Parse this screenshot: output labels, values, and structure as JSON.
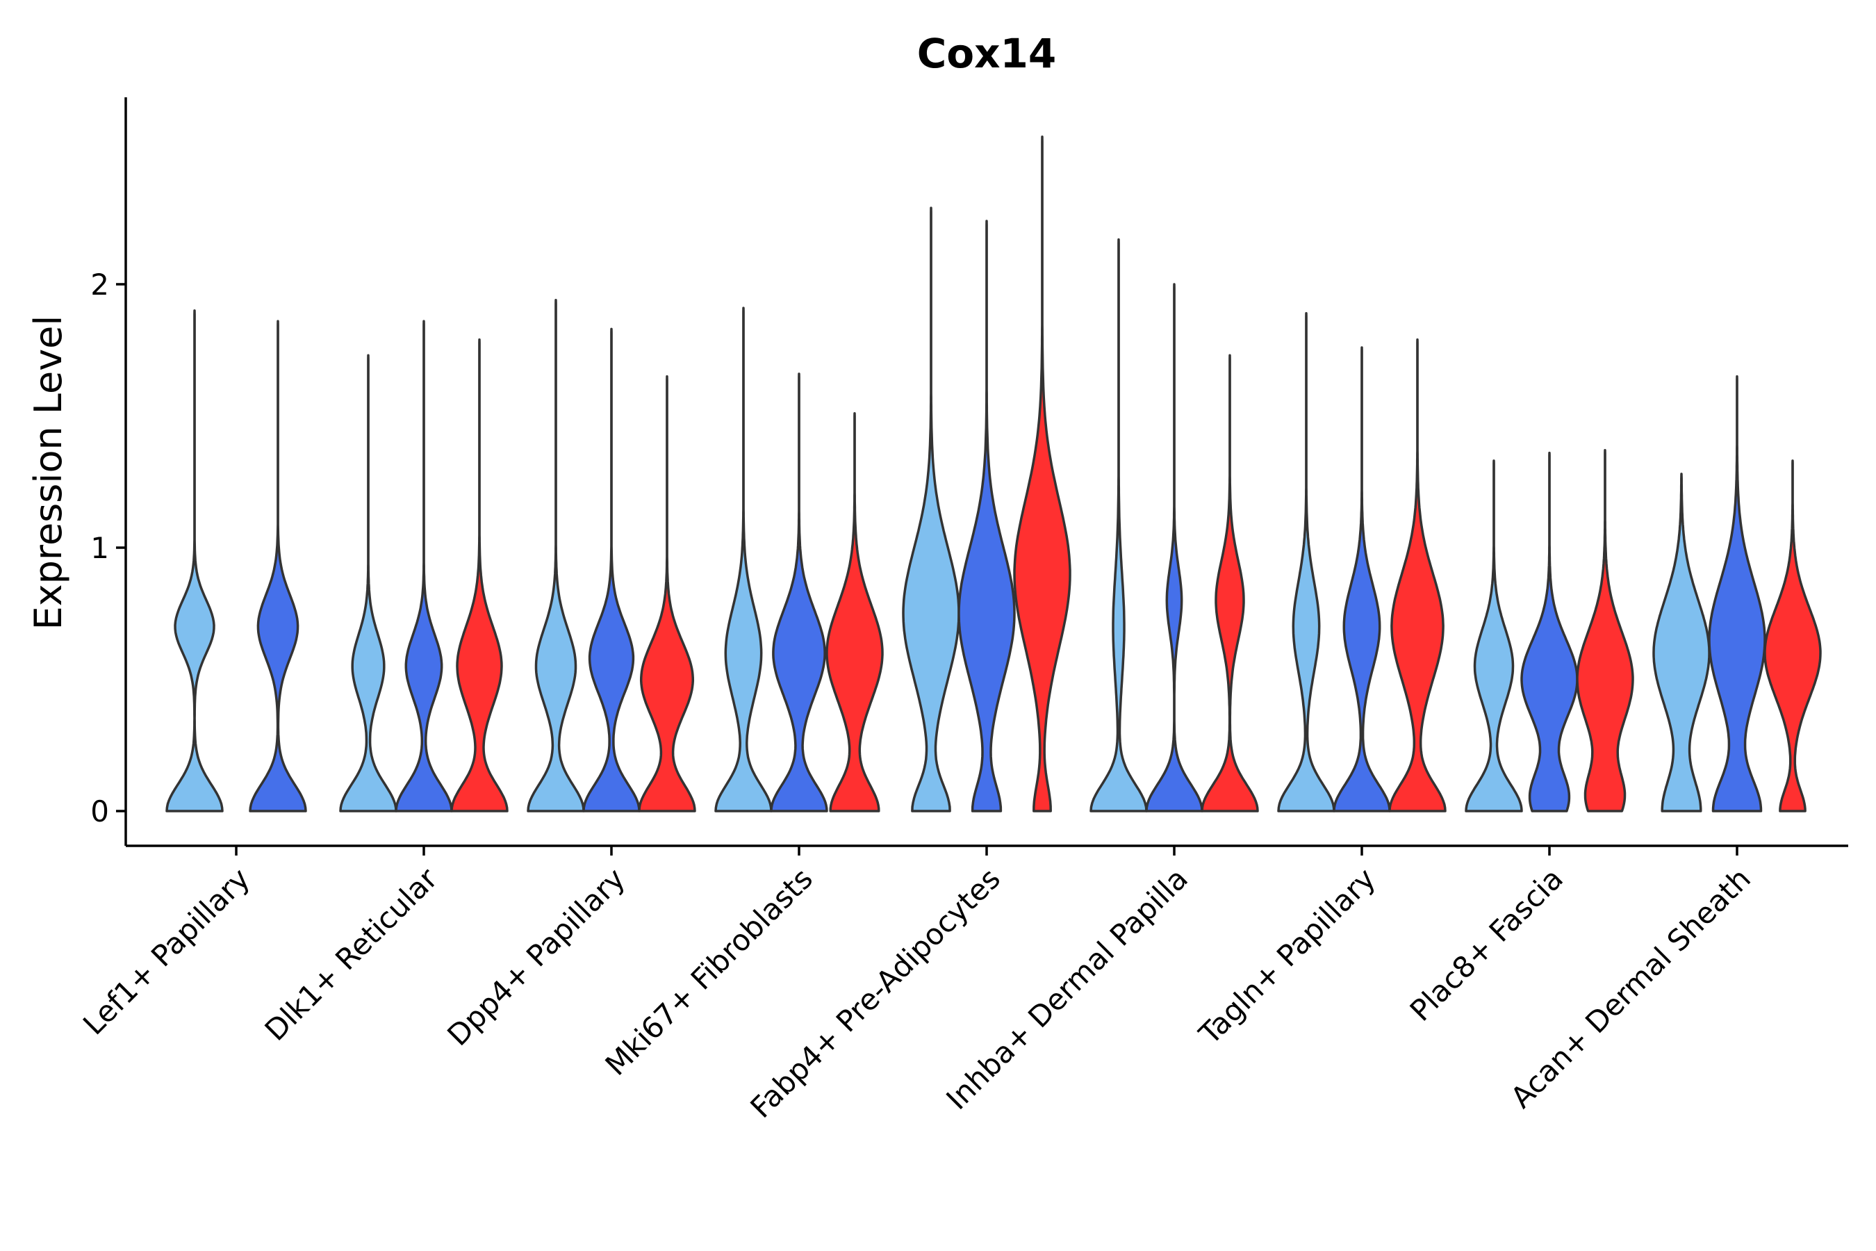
{
  "chart_data": {
    "type": "violin",
    "title": "Cox14",
    "xlabel": "",
    "ylabel": "Expression Level",
    "ylim": [
      -0.13,
      2.7
    ],
    "yticks": [
      0,
      1,
      2
    ],
    "ytick_labels": [
      "0",
      "1",
      "2"
    ],
    "colors": {
      "group1": "#7FBFEF",
      "group2": "#4570EA",
      "group3": "#FF3030",
      "outline": "#333333"
    },
    "categories": [
      {
        "label": "Lef1+ Papillary",
        "violins": [
          {
            "group": "group1",
            "max": 1.9,
            "modes": [
              [
                0.0,
                0.5,
                0.1
              ],
              [
                0.7,
                0.35,
                0.1
              ]
            ]
          },
          {
            "group": "group2",
            "max": 1.86,
            "modes": [
              [
                0.0,
                0.7,
                0.1
              ],
              [
                0.7,
                0.5,
                0.12
              ]
            ]
          }
        ]
      },
      {
        "label": "Dlk1+ Reticular",
        "violins": [
          {
            "group": "group1",
            "max": 1.73,
            "modes": [
              [
                0.0,
                0.7,
                0.1
              ],
              [
                0.55,
                0.4,
                0.12
              ]
            ]
          },
          {
            "group": "group2",
            "max": 1.86,
            "modes": [
              [
                0.0,
                0.7,
                0.1
              ],
              [
                0.55,
                0.45,
                0.12
              ]
            ]
          },
          {
            "group": "group3",
            "max": 1.79,
            "modes": [
              [
                0.0,
                0.75,
                0.1
              ],
              [
                0.55,
                0.6,
                0.15
              ]
            ]
          }
        ]
      },
      {
        "label": "Dpp4+ Papillary",
        "violins": [
          {
            "group": "group1",
            "max": 1.94,
            "modes": [
              [
                0.0,
                0.7,
                0.1
              ],
              [
                0.55,
                0.5,
                0.14
              ]
            ]
          },
          {
            "group": "group2",
            "max": 1.83,
            "modes": [
              [
                0.0,
                0.7,
                0.1
              ],
              [
                0.58,
                0.55,
                0.13
              ]
            ]
          },
          {
            "group": "group3",
            "max": 1.65,
            "modes": [
              [
                0.0,
                0.75,
                0.1
              ],
              [
                0.5,
                0.7,
                0.14
              ]
            ]
          }
        ]
      },
      {
        "label": "Mki67+ Fibroblasts",
        "violins": [
          {
            "group": "group1",
            "max": 1.91,
            "modes": [
              [
                0.0,
                0.7,
                0.1
              ],
              [
                0.6,
                0.45,
                0.17
              ]
            ]
          },
          {
            "group": "group2",
            "max": 1.66,
            "modes": [
              [
                0.0,
                0.7,
                0.1
              ],
              [
                0.6,
                0.65,
                0.16
              ]
            ]
          },
          {
            "group": "group3",
            "max": 1.51,
            "modes": [
              [
                0.0,
                0.65,
                0.1
              ],
              [
                0.6,
                0.75,
                0.18
              ]
            ]
          }
        ]
      },
      {
        "label": "Fabp4+ Pre-Adipocytes",
        "violins": [
          {
            "group": "group1",
            "max": 2.29,
            "modes": [
              [
                0.0,
                0.5,
                0.1
              ],
              [
                0.75,
                0.75,
                0.25
              ]
            ]
          },
          {
            "group": "group2",
            "max": 2.24,
            "modes": [
              [
                0.0,
                0.4,
                0.1
              ],
              [
                0.75,
                0.8,
                0.25
              ]
            ]
          },
          {
            "group": "group3",
            "max": 2.56,
            "modes": [
              [
                0.0,
                0.3,
                0.1
              ],
              [
                0.9,
                1.0,
                0.28
              ]
            ]
          }
        ]
      },
      {
        "label": "Inhba+ Dermal Papilla",
        "violins": [
          {
            "group": "group1",
            "max": 2.17,
            "modes": [
              [
                0.0,
                0.75,
                0.1
              ],
              [
                0.7,
                0.15,
                0.2
              ]
            ]
          },
          {
            "group": "group2",
            "max": 2.0,
            "modes": [
              [
                0.0,
                0.75,
                0.1
              ],
              [
                0.8,
                0.2,
                0.12
              ]
            ]
          },
          {
            "group": "group3",
            "max": 1.73,
            "modes": [
              [
                0.0,
                0.7,
                0.1
              ],
              [
                0.8,
                0.35,
                0.15
              ]
            ]
          }
        ]
      },
      {
        "label": "Tagln+ Papillary",
        "violins": [
          {
            "group": "group1",
            "max": 1.89,
            "modes": [
              [
                0.0,
                0.75,
                0.1
              ],
              [
                0.7,
                0.35,
                0.17
              ]
            ]
          },
          {
            "group": "group2",
            "max": 1.76,
            "modes": [
              [
                0.0,
                0.7,
                0.1
              ],
              [
                0.7,
                0.45,
                0.16
              ]
            ]
          },
          {
            "group": "group3",
            "max": 1.79,
            "modes": [
              [
                0.0,
                0.7,
                0.1
              ],
              [
                0.7,
                0.65,
                0.2
              ]
            ]
          }
        ]
      },
      {
        "label": "Plac8+ Fascia",
        "violins": [
          {
            "group": "group1",
            "max": 1.33,
            "modes": [
              [
                0.0,
                0.8,
                0.1
              ],
              [
                0.55,
                0.55,
                0.14
              ]
            ]
          },
          {
            "group": "group2",
            "max": 1.36,
            "modes": [
              [
                0.05,
                0.7,
                0.1
              ],
              [
                0.5,
                1.0,
                0.15
              ]
            ]
          },
          {
            "group": "group3",
            "max": 1.37,
            "modes": [
              [
                0.05,
                0.6,
                0.1
              ],
              [
                0.5,
                0.9,
                0.18
              ]
            ]
          }
        ]
      },
      {
        "label": "Acan+ Dermal Sheath",
        "violins": [
          {
            "group": "group1",
            "max": 1.28,
            "modes": [
              [
                0.0,
                0.65,
                0.12
              ],
              [
                0.6,
                0.95,
                0.2
              ]
            ]
          },
          {
            "group": "group2",
            "max": 1.65,
            "modes": [
              [
                0.0,
                0.85,
                0.12
              ],
              [
                0.65,
                1.0,
                0.22
              ]
            ]
          },
          {
            "group": "group3",
            "max": 1.33,
            "modes": [
              [
                0.0,
                0.45,
                0.08
              ],
              [
                0.6,
                1.0,
                0.17
              ]
            ]
          }
        ]
      }
    ]
  }
}
